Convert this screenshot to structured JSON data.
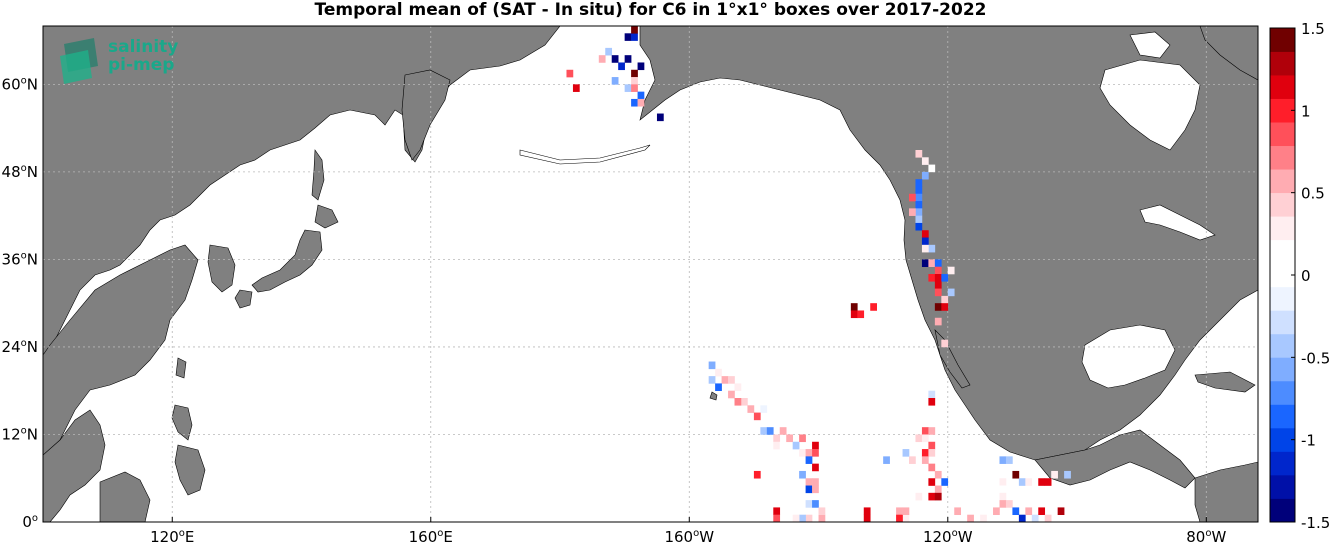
{
  "title": "Temporal mean of (SAT - In situ) for C6 in 1°x1° boxes over 2017-2022",
  "logo": {
    "line1": "salinity",
    "line2": "pi-mep"
  },
  "map": {
    "lon_range": [
      100,
      -72
    ],
    "lat_range": [
      0,
      68
    ],
    "lat_ticks": [
      {
        "lat": 0,
        "deg": "0",
        "hem": ""
      },
      {
        "lat": 12,
        "deg": "12",
        "hem": "N"
      },
      {
        "lat": 24,
        "deg": "24",
        "hem": "N"
      },
      {
        "lat": 36,
        "deg": "36",
        "hem": "N"
      },
      {
        "lat": 48,
        "deg": "48",
        "hem": "N"
      },
      {
        "lat": 60,
        "deg": "60",
        "hem": "N"
      }
    ],
    "lon_ticks": [
      {
        "lon": 120,
        "deg": "120",
        "hem": "E"
      },
      {
        "lon": 160,
        "deg": "160",
        "hem": "E"
      },
      {
        "lon": -160,
        "deg": "160",
        "hem": "W"
      },
      {
        "lon": -120,
        "deg": "120",
        "hem": "W"
      },
      {
        "lon": -80,
        "deg": "80",
        "hem": "W"
      }
    ],
    "land_color": "#808080",
    "grid": true
  },
  "colorbar": {
    "min": -1.5,
    "max": 1.5,
    "tick_labels": [
      "1.5",
      "1",
      "0.5",
      "0",
      "-0.5",
      "-1",
      "-1.5"
    ],
    "colors": [
      "#00007a",
      "#0010a8",
      "#0026cc",
      "#0044e8",
      "#1a66ff",
      "#4d8cff",
      "#7fadff",
      "#a8c8ff",
      "#cfe0ff",
      "#eef4ff",
      "#ffffff",
      "#ffffff",
      "#ffeef0",
      "#ffd0d4",
      "#ffacb2",
      "#ff8088",
      "#ff505a",
      "#ff1e2a",
      "#e0000e",
      "#b0000a",
      "#700000"
    ]
  },
  "chart_data": {
    "type": "heatmap",
    "title": "Temporal mean of (SAT - In situ) for C6 in 1°x1° boxes over 2017-2022",
    "value_range": [
      -1.5,
      1.5
    ],
    "cells": [
      {
        "lon": -169.5,
        "lat": 66.5,
        "v": -1.4
      },
      {
        "lon": -168.5,
        "lat": 66.5,
        "v": -1.2
      },
      {
        "lon": -168.5,
        "lat": 67.5,
        "v": 1.5
      },
      {
        "lon": -172.5,
        "lat": 64.5,
        "v": -0.4
      },
      {
        "lon": -171.5,
        "lat": 63.5,
        "v": -1.5
      },
      {
        "lon": -169.5,
        "lat": 63.5,
        "v": -1.5
      },
      {
        "lon": -170.5,
        "lat": 62.5,
        "v": -1.2
      },
      {
        "lon": -167.5,
        "lat": 62.5,
        "v": -1.5
      },
      {
        "lon": -173.5,
        "lat": 63.5,
        "v": 0.6
      },
      {
        "lon": -178.5,
        "lat": 61.5,
        "v": 0.9
      },
      {
        "lon": -177.5,
        "lat": 59.5,
        "v": 1.2
      },
      {
        "lon": -168.5,
        "lat": 61.5,
        "v": 1.4
      },
      {
        "lon": -168.5,
        "lat": 60.5,
        "v": 0.4
      },
      {
        "lon": -169.5,
        "lat": 59.5,
        "v": -0.5
      },
      {
        "lon": -168.5,
        "lat": 59.5,
        "v": 0.7
      },
      {
        "lon": -167.5,
        "lat": 58.5,
        "v": -0.9
      },
      {
        "lon": -168.5,
        "lat": 57.5,
        "v": -0.8
      },
      {
        "lon": -167.5,
        "lat": 57.5,
        "v": 0.5
      },
      {
        "lon": -171.5,
        "lat": 60.5,
        "v": -0.6
      },
      {
        "lon": -164.5,
        "lat": 55.5,
        "v": -1.5
      },
      {
        "lon": -124.5,
        "lat": 50.5,
        "v": 0.4
      },
      {
        "lon": -123.5,
        "lat": 49.5,
        "v": 0.3
      },
      {
        "lon": -122.5,
        "lat": 48.5,
        "v": 0.2
      },
      {
        "lon": -123.5,
        "lat": 47.5,
        "v": -0.6
      },
      {
        "lon": -124.5,
        "lat": 46.5,
        "v": -0.8
      },
      {
        "lon": -124.5,
        "lat": 45.5,
        "v": -0.9
      },
      {
        "lon": -124.5,
        "lat": 44.5,
        "v": -0.7
      },
      {
        "lon": -125.5,
        "lat": 44.5,
        "v": 0.8
      },
      {
        "lon": -124.5,
        "lat": 43.5,
        "v": -0.8
      },
      {
        "lon": -124.5,
        "lat": 42.5,
        "v": -0.6
      },
      {
        "lon": -125.5,
        "lat": 42.5,
        "v": 0.5
      },
      {
        "lon": -124.5,
        "lat": 41.5,
        "v": -0.5
      },
      {
        "lon": -124.5,
        "lat": 40.5,
        "v": -1.0
      },
      {
        "lon": -123.5,
        "lat": 39.5,
        "v": 1.2
      },
      {
        "lon": -123.5,
        "lat": 38.5,
        "v": -1.1
      },
      {
        "lon": -122.5,
        "lat": 37.5,
        "v": -0.4
      },
      {
        "lon": -123.5,
        "lat": 37.5,
        "v": 0.3
      },
      {
        "lon": -123.5,
        "lat": 35.5,
        "v": -1.5
      },
      {
        "lon": -122.5,
        "lat": 35.5,
        "v": 0.6
      },
      {
        "lon": -121.5,
        "lat": 35.5,
        "v": -0.9
      },
      {
        "lon": -121.5,
        "lat": 34.5,
        "v": 0.8
      },
      {
        "lon": -122.5,
        "lat": 33.5,
        "v": 1.0
      },
      {
        "lon": -121.5,
        "lat": 33.5,
        "v": 1.1
      },
      {
        "lon": -121.5,
        "lat": 32.5,
        "v": 1.2
      },
      {
        "lon": -120.5,
        "lat": 33.5,
        "v": -0.9
      },
      {
        "lon": -121.5,
        "lat": 31.5,
        "v": 0.9
      },
      {
        "lon": -119.5,
        "lat": 31.5,
        "v": -0.5
      },
      {
        "lon": -120.5,
        "lat": 30.5,
        "v": 0.4
      },
      {
        "lon": -121.5,
        "lat": 29.5,
        "v": 1.4
      },
      {
        "lon": -120.5,
        "lat": 29.5,
        "v": 1.1
      },
      {
        "lon": -121.5,
        "lat": 27.5,
        "v": 0.5
      },
      {
        "lon": -120.5,
        "lat": 24.5,
        "v": 0.4
      },
      {
        "lon": -119.5,
        "lat": 34.5,
        "v": 0.3
      },
      {
        "lon": -134.5,
        "lat": 29.5,
        "v": 1.4
      },
      {
        "lon": -134.5,
        "lat": 28.5,
        "v": 1.1
      },
      {
        "lon": -133.5,
        "lat": 28.5,
        "v": 1.0
      },
      {
        "lon": -131.5,
        "lat": 29.5,
        "v": 1.0
      },
      {
        "lon": -156.5,
        "lat": 21.5,
        "v": -0.6
      },
      {
        "lon": -155.5,
        "lat": 20.5,
        "v": 0.3
      },
      {
        "lon": -156.5,
        "lat": 19.5,
        "v": -0.4
      },
      {
        "lon": -154.5,
        "lat": 19.5,
        "v": 0.6
      },
      {
        "lon": -153.5,
        "lat": 19.5,
        "v": 0.4
      },
      {
        "lon": -155.5,
        "lat": 18.5,
        "v": -0.8
      },
      {
        "lon": -152.5,
        "lat": 18.5,
        "v": 0.3
      },
      {
        "lon": -153.5,
        "lat": 17.5,
        "v": 0.5
      },
      {
        "lon": -151.5,
        "lat": 16.5,
        "v": 0.4
      },
      {
        "lon": -152.5,
        "lat": 16.5,
        "v": 0.7
      },
      {
        "lon": -150.5,
        "lat": 15.5,
        "v": 0.5
      },
      {
        "lon": -148.5,
        "lat": 15.5,
        "v": -0.2
      },
      {
        "lon": -149.5,
        "lat": 14.5,
        "v": 0.8
      },
      {
        "lon": -148.5,
        "lat": 12.5,
        "v": -0.5
      },
      {
        "lon": -147.5,
        "lat": 12.5,
        "v": -0.7
      },
      {
        "lon": -146.5,
        "lat": 11.5,
        "v": 0.4
      },
      {
        "lon": -145.5,
        "lat": 12.5,
        "v": 0.6
      },
      {
        "lon": -146.5,
        "lat": 10.5,
        "v": 0.3
      },
      {
        "lon": -145.5,
        "lat": 10.5,
        "v": 0.2
      },
      {
        "lon": -144.5,
        "lat": 11.5,
        "v": 0.5
      },
      {
        "lon": -143.5,
        "lat": 10.5,
        "v": -0.4
      },
      {
        "lon": -142.5,
        "lat": 11.5,
        "v": 0.7
      },
      {
        "lon": -142.5,
        "lat": 9.5,
        "v": 0.3
      },
      {
        "lon": -141.5,
        "lat": 9.5,
        "v": 0.5
      },
      {
        "lon": -140.5,
        "lat": 10.5,
        "v": 1.2
      },
      {
        "lon": -140.5,
        "lat": 9.5,
        "v": 0.8
      },
      {
        "lon": -141.5,
        "lat": 8.5,
        "v": -0.9
      },
      {
        "lon": -140.5,
        "lat": 7.5,
        "v": 1.1
      },
      {
        "lon": -142.5,
        "lat": 6.5,
        "v": -0.6
      },
      {
        "lon": -141.5,
        "lat": 5.5,
        "v": 0.6
      },
      {
        "lon": -141.5,
        "lat": 4.5,
        "v": -1.0
      },
      {
        "lon": -140.5,
        "lat": 5.5,
        "v": 0.5
      },
      {
        "lon": -140.5,
        "lat": 4.5,
        "v": 0.6
      },
      {
        "lon": -149.5,
        "lat": 6.5,
        "v": 1.0
      },
      {
        "lon": -141.5,
        "lat": 2.5,
        "v": -0.3
      },
      {
        "lon": -140.5,
        "lat": 2.5,
        "v": -0.7
      },
      {
        "lon": -141.5,
        "lat": 0.5,
        "v": 0.4
      },
      {
        "lon": -142.5,
        "lat": 0.5,
        "v": -0.4
      },
      {
        "lon": -143.5,
        "lat": 0.5,
        "v": 0.3
      },
      {
        "lon": -139.5,
        "lat": 0.5,
        "v": 0.5
      },
      {
        "lon": -139.5,
        "lat": 1.5,
        "v": 0.4
      },
      {
        "lon": -146.5,
        "lat": 1.5,
        "v": 1.2
      },
      {
        "lon": -146.5,
        "lat": 0.5,
        "v": 0.8
      },
      {
        "lon": -132.5,
        "lat": 1.5,
        "v": 1.2
      },
      {
        "lon": -132.5,
        "lat": 0.5,
        "v": 1.1
      },
      {
        "lon": -128.5,
        "lat": 2.5,
        "v": 0.2
      },
      {
        "lon": -127.5,
        "lat": 1.5,
        "v": 0.5
      },
      {
        "lon": -126.5,
        "lat": 0.5,
        "v": 0.3
      },
      {
        "lon": -127.5,
        "lat": 0.5,
        "v": 1.0
      },
      {
        "lon": -126.5,
        "lat": 1.5,
        "v": 0.5
      },
      {
        "lon": -123.5,
        "lat": 12.5,
        "v": 0.9
      },
      {
        "lon": -122.5,
        "lat": 12.5,
        "v": 0.6
      },
      {
        "lon": -124.5,
        "lat": 11.5,
        "v": 0.4
      },
      {
        "lon": -123.5,
        "lat": 11.5,
        "v": 0.3
      },
      {
        "lon": -122.5,
        "lat": 10.5,
        "v": 0.8
      },
      {
        "lon": -123.5,
        "lat": 9.5,
        "v": 1.0
      },
      {
        "lon": -122.5,
        "lat": 9.5,
        "v": 0.4
      },
      {
        "lon": -123.5,
        "lat": 8.5,
        "v": 0.5
      },
      {
        "lon": -122.5,
        "lat": 7.5,
        "v": 0.7
      },
      {
        "lon": -121.5,
        "lat": 6.5,
        "v": 0.5
      },
      {
        "lon": -120.5,
        "lat": 5.5,
        "v": -0.9
      },
      {
        "lon": -122.5,
        "lat": 5.5,
        "v": 1.2
      },
      {
        "lon": -121.5,
        "lat": 4.5,
        "v": 0.6
      },
      {
        "lon": -122.5,
        "lat": 3.5,
        "v": 1.1
      },
      {
        "lon": -121.5,
        "lat": 3.5,
        "v": 1.3
      },
      {
        "lon": -124.5,
        "lat": 3.5,
        "v": 0.3
      },
      {
        "lon": -122.5,
        "lat": 17.5,
        "v": -0.3
      },
      {
        "lon": -122.5,
        "lat": 16.5,
        "v": 1.2
      },
      {
        "lon": -129.5,
        "lat": 8.5,
        "v": -0.6
      },
      {
        "lon": -126.5,
        "lat": 9.5,
        "v": -0.4
      },
      {
        "lon": -125.5,
        "lat": 8.5,
        "v": 0.4
      },
      {
        "lon": -118.5,
        "lat": 1.5,
        "v": 0.5
      },
      {
        "lon": -116.5,
        "lat": 0.5,
        "v": 0.6
      },
      {
        "lon": -114.5,
        "lat": 0.5,
        "v": 0.3
      },
      {
        "lon": -112.5,
        "lat": 1.5,
        "v": 0.5
      },
      {
        "lon": -111.5,
        "lat": 8.5,
        "v": -0.6
      },
      {
        "lon": -110.5,
        "lat": 8.5,
        "v": -0.5
      },
      {
        "lon": -111.5,
        "lat": 5.5,
        "v": 0.3
      },
      {
        "lon": -111.5,
        "lat": 4.5,
        "v": 0.2
      },
      {
        "lon": -111.5,
        "lat": 3.5,
        "v": 0.3
      },
      {
        "lon": -111.5,
        "lat": 2.5,
        "v": 0.5
      },
      {
        "lon": -110.5,
        "lat": 2.5,
        "v": 0.4
      },
      {
        "lon": -109.5,
        "lat": 6.5,
        "v": 1.4
      },
      {
        "lon": -108.5,
        "lat": 5.5,
        "v": -0.4
      },
      {
        "lon": -107.5,
        "lat": 5.5,
        "v": 0.3
      },
      {
        "lon": -105.5,
        "lat": 5.5,
        "v": 1.2
      },
      {
        "lon": -104.5,
        "lat": 5.5,
        "v": 1.1
      },
      {
        "lon": -103.5,
        "lat": 6.5,
        "v": 0.3
      },
      {
        "lon": -101.5,
        "lat": 6.5,
        "v": -0.4
      },
      {
        "lon": -109.5,
        "lat": 1.5,
        "v": -0.9
      },
      {
        "lon": -108.5,
        "lat": 0.5,
        "v": -1.1
      },
      {
        "lon": -107.5,
        "lat": 1.5,
        "v": 0.5
      },
      {
        "lon": -106.5,
        "lat": 0.5,
        "v": -0.3
      },
      {
        "lon": -105.5,
        "lat": 1.5,
        "v": 1.2
      },
      {
        "lon": -102.5,
        "lat": 1.5,
        "v": 1.3
      },
      {
        "lon": -104.5,
        "lat": 0.5,
        "v": 0.4
      }
    ]
  }
}
